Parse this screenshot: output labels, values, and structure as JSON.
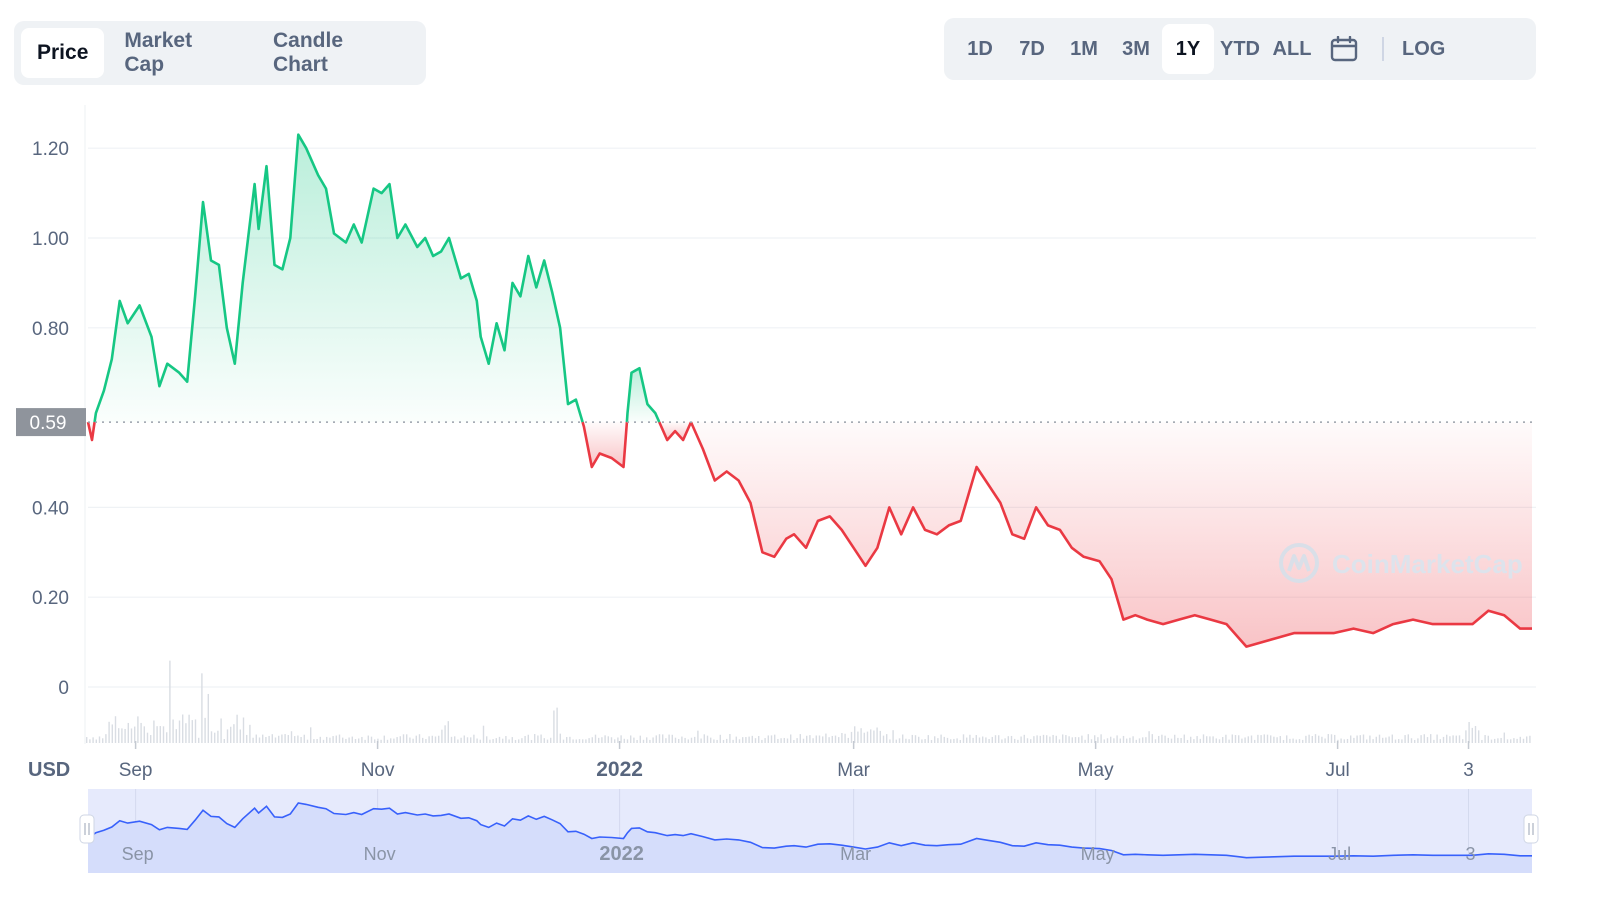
{
  "chart_tabs": [
    "Price",
    "Market Cap",
    "Candle Chart"
  ],
  "active_chart_tab": "Price",
  "range_buttons": [
    "1D",
    "7D",
    "1M",
    "3M",
    "1Y",
    "YTD",
    "ALL"
  ],
  "active_range": "1Y",
  "log_label": "LOG",
  "calendar_icon": "calendar-icon",
  "currency_label": "USD",
  "watermark": "CoinMarketCap",
  "colors": {
    "up": "#16c784",
    "down": "#ea3943",
    "navigator": "#3861fb",
    "reference": "#8f949c"
  },
  "chart_data": {
    "type": "line",
    "title": "",
    "xlabel": "",
    "ylabel": "",
    "reference_value": 0.59,
    "reference_label": "0.59",
    "ylim": [
      0,
      1.25
    ],
    "yticks": [
      0,
      0.2,
      0.4,
      0.59,
      0.8,
      1.0,
      1.2
    ],
    "ytick_labels": [
      "0",
      "0.20",
      "0.40",
      "0.59",
      "0.80",
      "1.00",
      "1.20"
    ],
    "xlim": [
      "2021-08-20",
      "2022-08-19"
    ],
    "xticks": [
      {
        "date": "2021-09-01",
        "label": "Sep",
        "bold": false
      },
      {
        "date": "2021-11-01",
        "label": "Nov",
        "bold": false
      },
      {
        "date": "2022-01-01",
        "label": "2022",
        "bold": true
      },
      {
        "date": "2022-03-01",
        "label": "Mar",
        "bold": false
      },
      {
        "date": "2022-05-01",
        "label": "May",
        "bold": false
      },
      {
        "date": "2022-07-01",
        "label": "Jul",
        "bold": false
      },
      {
        "date": "2022-08-03",
        "label": "3",
        "bold": false
      }
    ],
    "series": [
      {
        "points": [
          [
            "2021-08-20",
            0.59
          ],
          [
            "2021-08-21",
            0.55
          ],
          [
            "2021-08-22",
            0.61
          ],
          [
            "2021-08-24",
            0.66
          ],
          [
            "2021-08-26",
            0.73
          ],
          [
            "2021-08-28",
            0.86
          ],
          [
            "2021-08-30",
            0.81
          ],
          [
            "2021-09-02",
            0.85
          ],
          [
            "2021-09-05",
            0.78
          ],
          [
            "2021-09-07",
            0.67
          ],
          [
            "2021-09-09",
            0.72
          ],
          [
            "2021-09-12",
            0.7
          ],
          [
            "2021-09-14",
            0.68
          ],
          [
            "2021-09-16",
            0.87
          ],
          [
            "2021-09-18",
            1.08
          ],
          [
            "2021-09-20",
            0.95
          ],
          [
            "2021-09-22",
            0.94
          ],
          [
            "2021-09-24",
            0.8
          ],
          [
            "2021-09-26",
            0.72
          ],
          [
            "2021-09-28",
            0.9
          ],
          [
            "2021-10-01",
            1.12
          ],
          [
            "2021-10-02",
            1.02
          ],
          [
            "2021-10-04",
            1.16
          ],
          [
            "2021-10-06",
            0.94
          ],
          [
            "2021-10-08",
            0.93
          ],
          [
            "2021-10-10",
            1.0
          ],
          [
            "2021-10-12",
            1.23
          ],
          [
            "2021-10-14",
            1.2
          ],
          [
            "2021-10-17",
            1.14
          ],
          [
            "2021-10-19",
            1.11
          ],
          [
            "2021-10-21",
            1.01
          ],
          [
            "2021-10-24",
            0.99
          ],
          [
            "2021-10-26",
            1.03
          ],
          [
            "2021-10-28",
            0.99
          ],
          [
            "2021-10-31",
            1.11
          ],
          [
            "2021-11-02",
            1.1
          ],
          [
            "2021-11-04",
            1.12
          ],
          [
            "2021-11-06",
            1.0
          ],
          [
            "2021-11-08",
            1.03
          ],
          [
            "2021-11-11",
            0.98
          ],
          [
            "2021-11-13",
            1.0
          ],
          [
            "2021-11-15",
            0.96
          ],
          [
            "2021-11-17",
            0.97
          ],
          [
            "2021-11-19",
            1.0
          ],
          [
            "2021-11-22",
            0.91
          ],
          [
            "2021-11-24",
            0.92
          ],
          [
            "2021-11-26",
            0.86
          ],
          [
            "2021-11-27",
            0.78
          ],
          [
            "2021-11-29",
            0.72
          ],
          [
            "2021-12-01",
            0.81
          ],
          [
            "2021-12-03",
            0.75
          ],
          [
            "2021-12-05",
            0.9
          ],
          [
            "2021-12-07",
            0.87
          ],
          [
            "2021-12-09",
            0.96
          ],
          [
            "2021-12-11",
            0.89
          ],
          [
            "2021-12-13",
            0.95
          ],
          [
            "2021-12-15",
            0.88
          ],
          [
            "2021-12-17",
            0.8
          ],
          [
            "2021-12-19",
            0.63
          ],
          [
            "2021-12-21",
            0.64
          ],
          [
            "2021-12-23",
            0.58
          ],
          [
            "2021-12-25",
            0.49
          ],
          [
            "2021-12-27",
            0.52
          ],
          [
            "2021-12-30",
            0.51
          ],
          [
            "2022-01-02",
            0.49
          ],
          [
            "2022-01-03",
            0.61
          ],
          [
            "2022-01-04",
            0.7
          ],
          [
            "2022-01-06",
            0.71
          ],
          [
            "2022-01-08",
            0.63
          ],
          [
            "2022-01-10",
            0.61
          ],
          [
            "2022-01-13",
            0.55
          ],
          [
            "2022-01-15",
            0.57
          ],
          [
            "2022-01-17",
            0.55
          ],
          [
            "2022-01-19",
            0.59
          ],
          [
            "2022-01-22",
            0.53
          ],
          [
            "2022-01-25",
            0.46
          ],
          [
            "2022-01-28",
            0.48
          ],
          [
            "2022-01-31",
            0.46
          ],
          [
            "2022-02-03",
            0.41
          ],
          [
            "2022-02-06",
            0.3
          ],
          [
            "2022-02-09",
            0.29
          ],
          [
            "2022-02-12",
            0.33
          ],
          [
            "2022-02-14",
            0.34
          ],
          [
            "2022-02-17",
            0.31
          ],
          [
            "2022-02-20",
            0.37
          ],
          [
            "2022-02-23",
            0.38
          ],
          [
            "2022-02-26",
            0.35
          ],
          [
            "2022-03-01",
            0.31
          ],
          [
            "2022-03-04",
            0.27
          ],
          [
            "2022-03-07",
            0.31
          ],
          [
            "2022-03-10",
            0.4
          ],
          [
            "2022-03-13",
            0.34
          ],
          [
            "2022-03-16",
            0.4
          ],
          [
            "2022-03-19",
            0.35
          ],
          [
            "2022-03-22",
            0.34
          ],
          [
            "2022-03-25",
            0.36
          ],
          [
            "2022-03-28",
            0.37
          ],
          [
            "2022-04-01",
            0.49
          ],
          [
            "2022-04-04",
            0.45
          ],
          [
            "2022-04-07",
            0.41
          ],
          [
            "2022-04-10",
            0.34
          ],
          [
            "2022-04-13",
            0.33
          ],
          [
            "2022-04-16",
            0.4
          ],
          [
            "2022-04-19",
            0.36
          ],
          [
            "2022-04-22",
            0.35
          ],
          [
            "2022-04-25",
            0.31
          ],
          [
            "2022-04-28",
            0.29
          ],
          [
            "2022-05-02",
            0.28
          ],
          [
            "2022-05-05",
            0.24
          ],
          [
            "2022-05-08",
            0.15
          ],
          [
            "2022-05-11",
            0.16
          ],
          [
            "2022-05-14",
            0.15
          ],
          [
            "2022-05-18",
            0.14
          ],
          [
            "2022-05-22",
            0.15
          ],
          [
            "2022-05-26",
            0.16
          ],
          [
            "2022-05-30",
            0.15
          ],
          [
            "2022-06-03",
            0.14
          ],
          [
            "2022-06-06",
            0.11
          ],
          [
            "2022-06-08",
            0.09
          ],
          [
            "2022-06-12",
            0.1
          ],
          [
            "2022-06-16",
            0.11
          ],
          [
            "2022-06-20",
            0.12
          ],
          [
            "2022-06-25",
            0.12
          ],
          [
            "2022-06-30",
            0.12
          ],
          [
            "2022-07-05",
            0.13
          ],
          [
            "2022-07-10",
            0.12
          ],
          [
            "2022-07-15",
            0.14
          ],
          [
            "2022-07-20",
            0.15
          ],
          [
            "2022-07-25",
            0.14
          ],
          [
            "2022-07-30",
            0.14
          ],
          [
            "2022-08-04",
            0.14
          ],
          [
            "2022-08-08",
            0.17
          ],
          [
            "2022-08-12",
            0.16
          ],
          [
            "2022-08-16",
            0.13
          ],
          [
            "2022-08-19",
            0.13
          ]
        ]
      }
    ]
  }
}
